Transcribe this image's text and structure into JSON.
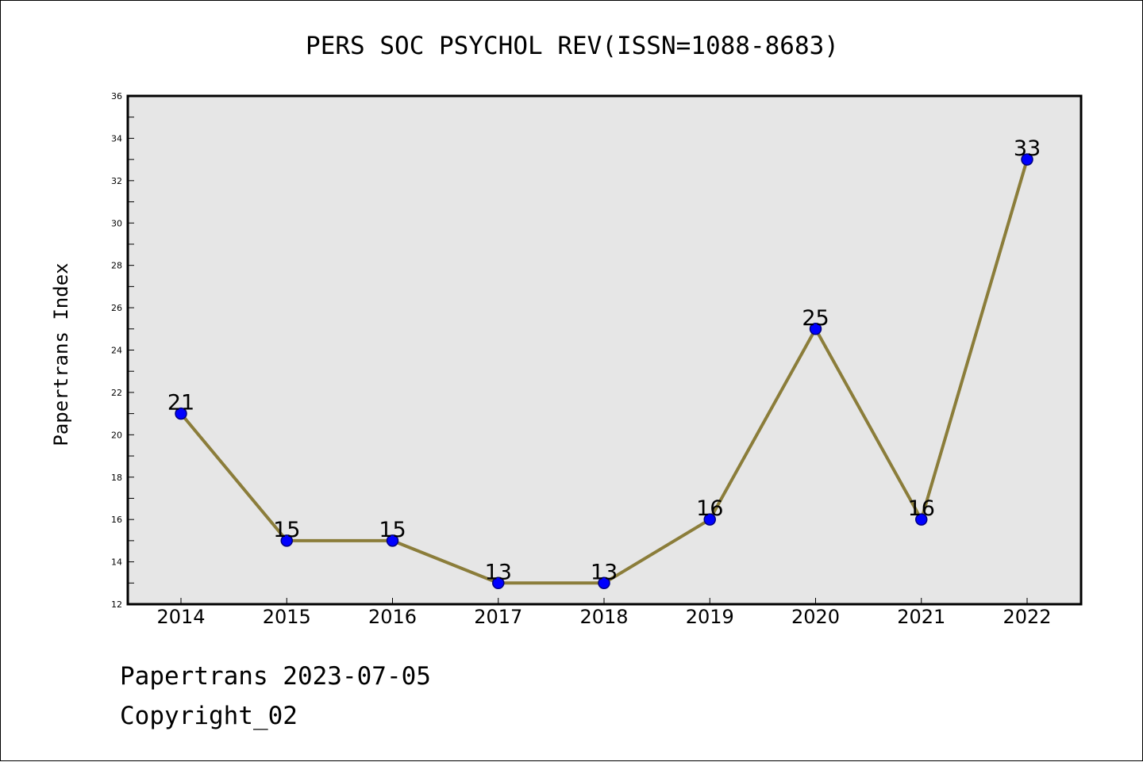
{
  "chart_data": {
    "type": "line",
    "title": "PERS SOC PSYCHOL REV(ISSN=1088-8683)",
    "xlabel": "",
    "ylabel": "Papertrans Index",
    "categories": [
      "2014",
      "2015",
      "2016",
      "2017",
      "2018",
      "2019",
      "2020",
      "2021",
      "2022"
    ],
    "series": [
      {
        "values": [
          21,
          15,
          15,
          13,
          13,
          16,
          25,
          16,
          33
        ]
      }
    ],
    "data_labels": [
      "21",
      "15",
      "15",
      "13",
      "13",
      "16",
      "25",
      "16",
      "33"
    ],
    "ylim": [
      12,
      36
    ],
    "yticks": [
      12,
      14,
      16,
      18,
      20,
      22,
      24,
      26,
      28,
      30,
      32,
      34,
      36
    ],
    "grid": false,
    "legend": "none",
    "colors": {
      "line": "#8b7d3a",
      "marker_fill": "#0000ff",
      "marker_stroke": "#000080",
      "plot_background": "#e6e6e6",
      "axes": "#000000"
    }
  },
  "footer": {
    "line1": "Papertrans 2023-07-05",
    "line2": "Copyright_02"
  }
}
